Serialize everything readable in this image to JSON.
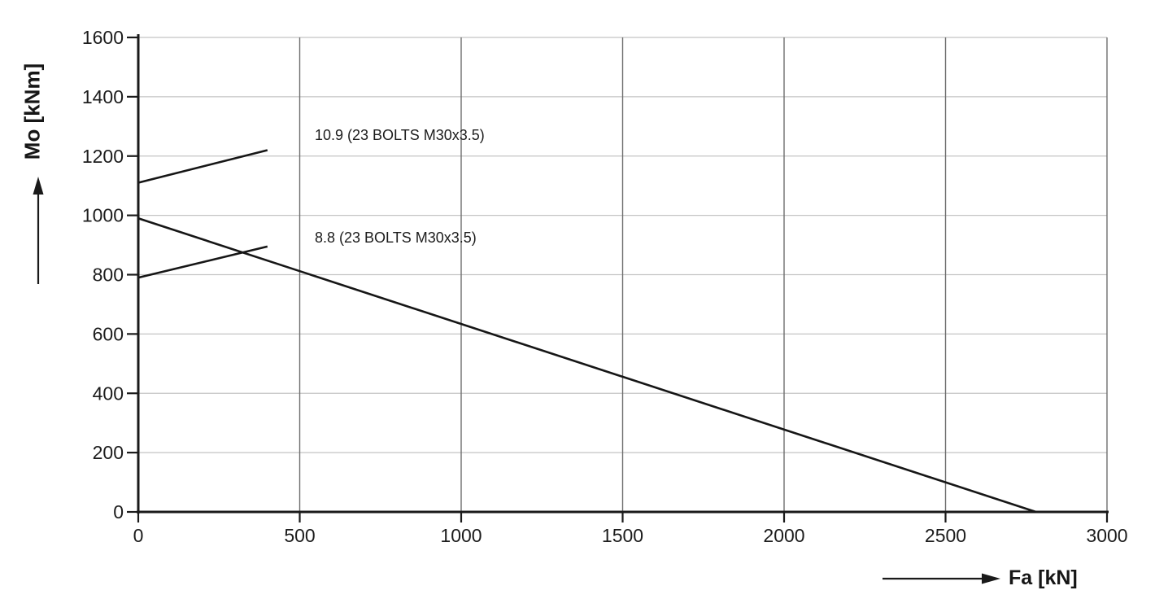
{
  "colors": {
    "background": "#ffffff",
    "axis": "#1a1a1a",
    "series_line": "#161616",
    "vertical_grid": "#6e6e6e",
    "horizontal_grid": "#c4c4c4",
    "text": "#1c1c1c"
  },
  "chart_data": {
    "type": "line",
    "title": "",
    "xlabel": "Fa [kN]",
    "ylabel": "Mo [kNm]",
    "xlim": [
      0,
      3000
    ],
    "ylim": [
      0,
      1600
    ],
    "x_ticks": [
      0,
      500,
      1000,
      1500,
      2000,
      2500,
      3000
    ],
    "y_ticks": [
      0,
      200,
      400,
      600,
      800,
      1000,
      1200,
      1400,
      1600
    ],
    "grid": {
      "vertical": true,
      "horizontal": true,
      "legend": "none"
    },
    "series": [
      {
        "name": "10.9 (23 BOLTS M30x3.5)",
        "points": [
          [
            0,
            1110
          ],
          [
            400,
            1220
          ]
        ]
      },
      {
        "name": "8.8 (23 BOLTS M30x3.5)",
        "points": [
          [
            0,
            790
          ],
          [
            400,
            895
          ]
        ]
      },
      {
        "name": "",
        "points": [
          [
            0,
            990
          ],
          [
            2780,
            0
          ]
        ]
      }
    ],
    "annotations": [
      {
        "text": "10.9 (23 BOLTS M30x3.5)",
        "x": 545,
        "y": 1270
      },
      {
        "text": "8.8 (23 BOLTS M30x3.5)",
        "x": 545,
        "y": 920
      }
    ]
  }
}
